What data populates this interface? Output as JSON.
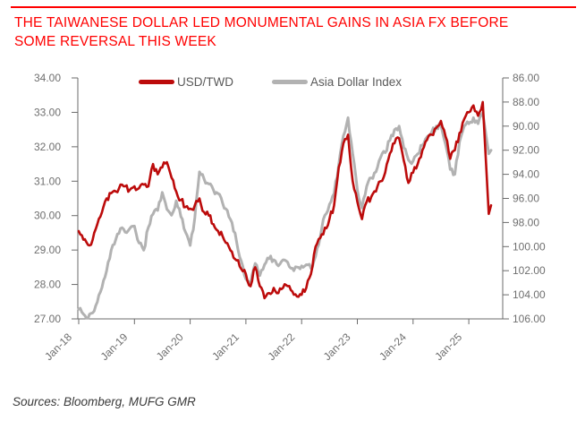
{
  "header": {
    "title_line1": "THE TAIWANESE DOLLAR LED MONUMENTAL GAINS IN ASIA FX BEFORE",
    "title_line2": "SOME REVERSAL THIS WEEK",
    "title_color": "#ff0000",
    "rule_color": "#ff0000"
  },
  "footer": {
    "sources_text": "Sources:  Bloomberg, MUFG GMR"
  },
  "colors": {
    "usdtwd_line": "#bc0b0b",
    "asia_dollar_index_line": "#b2b2b2",
    "axis_line": "#6b6b6b",
    "tick_label": "#6f6f6f",
    "legend_text": "#595959"
  },
  "chart_data": {
    "type": "line",
    "title": "THE TAIWANESE DOLLAR LED MONUMENTAL GAINS IN ASIA FX BEFORE SOME REVERSAL THIS WEEK",
    "grid": false,
    "legend": {
      "position": "top",
      "entries": [
        {
          "label": "USD/TWD",
          "color": "#bc0b0b"
        },
        {
          "label": "Asia Dollar Index",
          "color": "#b2b2b2"
        }
      ]
    },
    "x_axis": {
      "labels": [
        "Jan-18",
        "Jan-19",
        "Jan-20",
        "Jan-21",
        "Jan-22",
        "Jan-23",
        "Jan-24",
        "Jan-25"
      ],
      "label_rotation_deg": -45
    },
    "left_axis": {
      "series": "USD/TWD",
      "min": 27,
      "max": 34,
      "tick_labels": [
        "34.00",
        "33.00",
        "32.00",
        "31.00",
        "30.00",
        "29.00",
        "28.00",
        "27.00"
      ]
    },
    "right_axis": {
      "series": "Asia Dollar Index",
      "min": 86,
      "max": 106,
      "reversed": true,
      "tick_labels": [
        "86.00",
        "88.00",
        "90.00",
        "92.00",
        "94.00",
        "96.00",
        "98.00",
        "100.00",
        "102.00",
        "104.00",
        "106.00"
      ]
    },
    "x_months_from_jan2018": [
      0,
      1,
      2,
      3,
      4,
      5,
      6,
      7,
      8,
      9,
      10,
      11,
      12,
      13,
      14,
      15,
      16,
      17,
      18,
      19,
      20,
      21,
      22,
      23,
      24,
      25,
      26,
      27,
      28,
      29,
      30,
      31,
      32,
      33,
      34,
      35,
      36,
      37,
      38,
      39,
      40,
      41,
      42,
      43,
      44,
      45,
      46,
      47,
      48,
      49,
      50,
      51,
      52,
      53,
      54,
      55,
      56,
      57,
      58,
      59,
      60,
      61,
      62,
      63,
      64,
      65,
      66,
      67,
      68,
      69,
      70,
      71,
      72,
      73,
      74,
      75,
      76,
      77,
      78,
      79,
      80,
      81,
      82,
      83,
      84,
      85,
      86,
      87,
      88.3,
      88.8
    ],
    "series": [
      {
        "name": "Asia Dollar Index",
        "axis": "right",
        "color": "#b2b2b2",
        "stroke_width": 3,
        "noise_amp": 0.26,
        "values": [
          105.2,
          105.6,
          105.95,
          105.5,
          104.6,
          103.4,
          102.0,
          100.3,
          99.4,
          98.5,
          98.8,
          98.5,
          98.3,
          99.7,
          100.3,
          98.4,
          97.3,
          97.0,
          95.5,
          96.9,
          97.4,
          96.2,
          97.5,
          98.8,
          99.9,
          97.6,
          93.8,
          94.4,
          94.8,
          95.3,
          95.6,
          96.4,
          97.0,
          98.0,
          99.6,
          101.2,
          102.7,
          103.1,
          101.4,
          102.4,
          101.5,
          101.0,
          101.1,
          101.6,
          101.1,
          101.3,
          101.8,
          101.7,
          101.6,
          101.5,
          101.8,
          100.8,
          99.2,
          97.4,
          96.5,
          95.6,
          93.2,
          90.8,
          89.3,
          92.3,
          95.3,
          96.8,
          95.0,
          94.3,
          93.8,
          92.6,
          92.2,
          91.2,
          90.3,
          90.0,
          91.8,
          92.8,
          92.9,
          92.3,
          91.6,
          90.9,
          90.5,
          90.0,
          89.9,
          91.5,
          93.6,
          94.0,
          91.3,
          90.0,
          89.8,
          89.3,
          89.8,
          88.9,
          92.3,
          92.0
        ]
      },
      {
        "name": "USD/TWD",
        "axis": "left",
        "color": "#bc0b0b",
        "stroke_width": 2.6,
        "noise_amp": 0.1,
        "values": [
          29.55,
          29.3,
          29.15,
          29.3,
          29.75,
          30.1,
          30.5,
          30.65,
          30.7,
          30.9,
          30.85,
          30.75,
          30.85,
          30.8,
          30.9,
          30.85,
          31.5,
          31.2,
          31.4,
          31.55,
          31.1,
          30.7,
          30.45,
          30.25,
          30.2,
          30.3,
          30.5,
          30.1,
          30.0,
          29.75,
          29.55,
          29.4,
          29.2,
          28.95,
          28.7,
          28.45,
          28.3,
          27.95,
          28.5,
          27.95,
          27.6,
          27.75,
          27.9,
          27.75,
          27.9,
          27.95,
          27.8,
          27.65,
          27.7,
          27.9,
          28.3,
          29.1,
          29.35,
          29.65,
          29.9,
          30.3,
          31.4,
          32.1,
          32.35,
          31.0,
          30.4,
          29.9,
          30.4,
          30.55,
          30.7,
          31.0,
          31.25,
          31.8,
          32.1,
          32.25,
          31.6,
          30.95,
          31.25,
          31.5,
          31.9,
          32.2,
          32.35,
          32.55,
          32.75,
          32.3,
          31.65,
          31.9,
          32.4,
          32.8,
          33.0,
          33.2,
          32.9,
          33.3,
          30.05,
          30.3
        ]
      }
    ]
  }
}
